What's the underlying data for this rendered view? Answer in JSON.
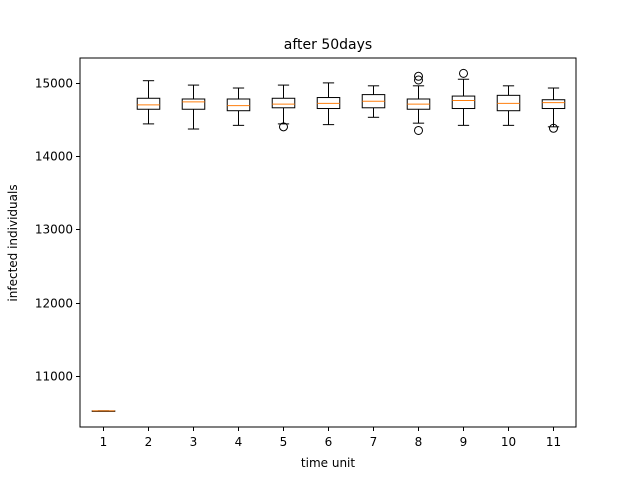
{
  "chart_data": {
    "type": "boxplot",
    "title": "after 50days",
    "xlabel": "time unit",
    "ylabel": "infected individuals",
    "categories": [
      "1",
      "2",
      "3",
      "4",
      "5",
      "6",
      "7",
      "8",
      "9",
      "10",
      "11"
    ],
    "yticks": [
      "11000",
      "12000",
      "13000",
      "14000",
      "15000"
    ],
    "ytick_values": [
      11000,
      12000,
      13000,
      14000,
      15000
    ],
    "ylim": [
      10300,
      15340
    ],
    "xlim": [
      0.5,
      11.5
    ],
    "grid": false,
    "box_color": "#000000",
    "median_color": "#ff7f0e",
    "boxes": [
      {
        "category": "1",
        "whislo": 10520,
        "q1": 10520,
        "med": 10520,
        "q3": 10520,
        "whishi": 10520,
        "fliers": []
      },
      {
        "category": "2",
        "whislo": 14440,
        "q1": 14640,
        "med": 14700,
        "q3": 14790,
        "whishi": 15030,
        "fliers": []
      },
      {
        "category": "3",
        "whislo": 14370,
        "q1": 14640,
        "med": 14740,
        "q3": 14780,
        "whishi": 14970,
        "fliers": []
      },
      {
        "category": "4",
        "whislo": 14420,
        "q1": 14620,
        "med": 14690,
        "q3": 14780,
        "whishi": 14930,
        "fliers": []
      },
      {
        "category": "5",
        "whislo": 14440,
        "q1": 14660,
        "med": 14710,
        "q3": 14790,
        "whishi": 14970,
        "fliers": [
          14400
        ]
      },
      {
        "category": "6",
        "whislo": 14430,
        "q1": 14650,
        "med": 14720,
        "q3": 14800,
        "whishi": 15000,
        "fliers": []
      },
      {
        "category": "7",
        "whislo": 14530,
        "q1": 14660,
        "med": 14750,
        "q3": 14840,
        "whishi": 14960,
        "fliers": []
      },
      {
        "category": "8",
        "whislo": 14450,
        "q1": 14640,
        "med": 14710,
        "q3": 14780,
        "whishi": 14960,
        "fliers": [
          14350,
          15040,
          15090
        ]
      },
      {
        "category": "9",
        "whislo": 14420,
        "q1": 14650,
        "med": 14760,
        "q3": 14820,
        "whishi": 15050,
        "fliers": [
          15130
        ]
      },
      {
        "category": "10",
        "whislo": 14420,
        "q1": 14620,
        "med": 14720,
        "q3": 14830,
        "whishi": 14960,
        "fliers": []
      },
      {
        "category": "11",
        "whislo": 14400,
        "q1": 14650,
        "med": 14730,
        "q3": 14770,
        "whishi": 14930,
        "fliers": [
          14380
        ]
      }
    ]
  }
}
